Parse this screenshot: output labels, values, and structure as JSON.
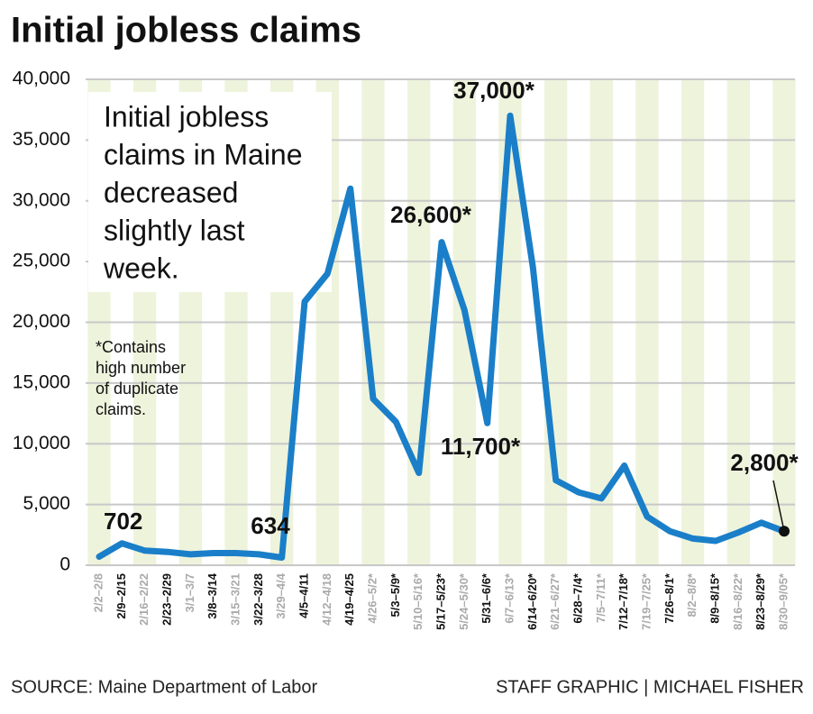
{
  "chart_data": {
    "type": "line",
    "title": "Initial jobless claims",
    "annotation_lines": [
      "Initial jobless",
      "claims in Maine",
      "decreased",
      "slightly last",
      "week."
    ],
    "footnote_lines": [
      "*Contains",
      "high number",
      "of duplicate",
      "claims."
    ],
    "source": "SOURCE: Maine Department of Labor",
    "credit": "STAFF GRAPHIC | MICHAEL FISHER",
    "categories": [
      "2/2–2/8",
      "2/9–2/15",
      "2/16–2/22",
      "2/23–2/29",
      "3/1–3/7",
      "3/8–3/14",
      "3/15–3/21",
      "3/22–3/28",
      "3/29–4/4",
      "4/5–4/11",
      "4/12–4/18",
      "4/19–4/25",
      "4/26–5/2*",
      "5/3–5/9*",
      "5/10–5/16*",
      "5/17–5/23*",
      "5/24–5/30*",
      "5/31–6/6*",
      "6/7–6/13*",
      "6/14–6/20*",
      "6/21–6/27*",
      "6/28–7/4*",
      "7/5–7/11*",
      "7/12–7/18*",
      "7/19–7/25*",
      "7/26–8/1*",
      "8/2–8/8*",
      "8/9–8/15*",
      "8/16–8/22*",
      "8/23–8/29*",
      "8/30–9/05*"
    ],
    "series": [
      {
        "name": "Initial jobless claims",
        "color": "#1a7fc8",
        "values": [
          702,
          1800,
          1200,
          1100,
          900,
          1000,
          1000,
          900,
          634,
          21700,
          24000,
          31000,
          13700,
          11800,
          7600,
          26600,
          21000,
          11700,
          37000,
          24500,
          7000,
          6000,
          5500,
          8200,
          4000,
          2800,
          2200,
          2000,
          2700,
          3500,
          2800
        ],
        "value_labels": [
          "702",
          null,
          null,
          null,
          null,
          null,
          null,
          null,
          "634",
          null,
          null,
          null,
          null,
          null,
          null,
          "26,600*",
          null,
          "11,700*",
          "37,000*",
          null,
          null,
          null,
          null,
          null,
          null,
          null,
          null,
          null,
          null,
          null,
          "2,800*"
        ]
      }
    ],
    "ylim": [
      0,
      40000
    ],
    "yticks": [
      0,
      {
        "value": 5000,
        "label": "5,000"
      },
      {
        "value": 10000,
        "label": "10,000"
      },
      {
        "value": 15000,
        "label": "15,000"
      },
      {
        "value": 20000,
        "label": "20,000"
      },
      {
        "value": 25000,
        "label": "25,000"
      },
      {
        "value": 30000,
        "label": "30,000"
      },
      {
        "value": 35000,
        "label": "35,000"
      },
      {
        "value": 40000,
        "label": "40,000"
      }
    ],
    "grid": true
  }
}
